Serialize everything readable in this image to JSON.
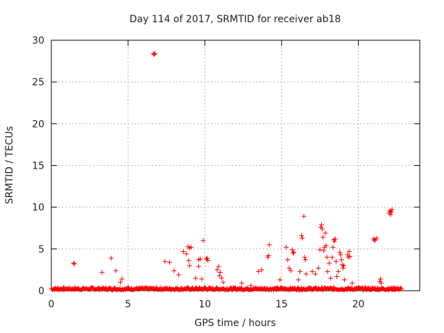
{
  "chart_data": {
    "type": "scatter",
    "title": "Day 114 of 2017, SRMTID for receiver ab18",
    "xlabel": "GPS time / hours",
    "ylabel": "SRMTID / TECUs",
    "xlim": [
      0,
      24
    ],
    "ylim": [
      0,
      30
    ],
    "xticks": [
      0,
      5,
      10,
      15,
      20
    ],
    "yticks": [
      0,
      5,
      10,
      15,
      20,
      25,
      30
    ],
    "grid": true,
    "marker": "+",
    "color": "#ff0000",
    "series": [
      {
        "name": "SRMTID",
        "points": [
          [
            1.45,
            3.3
          ],
          [
            1.5,
            3.2
          ],
          [
            3.3,
            2.2
          ],
          [
            3.9,
            3.9
          ],
          [
            4.2,
            2.4
          ],
          [
            4.6,
            1.4
          ],
          [
            4.5,
            1.0
          ],
          [
            6.65,
            28.4
          ],
          [
            6.7,
            28.3
          ],
          [
            6.75,
            28.4
          ],
          [
            7.4,
            3.5
          ],
          [
            7.7,
            3.4
          ],
          [
            8.0,
            2.4
          ],
          [
            8.3,
            1.9
          ],
          [
            8.6,
            4.7
          ],
          [
            8.8,
            4.4
          ],
          [
            8.9,
            5.3
          ],
          [
            9.0,
            5.1
          ],
          [
            9.1,
            5.2
          ],
          [
            8.95,
            3.6
          ],
          [
            9.0,
            3.0
          ],
          [
            9.4,
            1.5
          ],
          [
            9.6,
            2.9
          ],
          [
            9.8,
            1.4
          ],
          [
            9.6,
            3.7
          ],
          [
            9.7,
            3.8
          ],
          [
            9.9,
            6.0
          ],
          [
            10.1,
            3.8
          ],
          [
            10.2,
            3.6
          ],
          [
            10.15,
            3.9
          ],
          [
            10.8,
            2.5
          ],
          [
            10.9,
            2.9
          ],
          [
            11.0,
            2.2
          ],
          [
            11.1,
            1.5
          ],
          [
            10.95,
            1.8
          ],
          [
            11.2,
            1.0
          ],
          [
            12.4,
            0.9
          ],
          [
            13.0,
            0.6
          ],
          [
            13.5,
            2.3
          ],
          [
            13.7,
            2.5
          ],
          [
            14.2,
            5.5
          ],
          [
            14.15,
            4.2
          ],
          [
            14.1,
            4.0
          ],
          [
            14.9,
            1.3
          ],
          [
            15.3,
            5.2
          ],
          [
            15.4,
            3.7
          ],
          [
            15.5,
            2.7
          ],
          [
            15.6,
            2.4
          ],
          [
            15.7,
            4.9
          ],
          [
            15.8,
            4.6
          ],
          [
            15.75,
            4.5
          ],
          [
            16.1,
            1.3
          ],
          [
            16.2,
            2.3
          ],
          [
            16.3,
            6.6
          ],
          [
            16.35,
            6.3
          ],
          [
            16.45,
            8.9
          ],
          [
            16.5,
            4.0
          ],
          [
            16.55,
            3.7
          ],
          [
            16.6,
            2.0
          ],
          [
            17.0,
            2.3
          ],
          [
            17.2,
            2.0
          ],
          [
            17.4,
            2.7
          ],
          [
            17.5,
            4.9
          ],
          [
            17.55,
            7.6
          ],
          [
            17.6,
            7.9
          ],
          [
            17.65,
            7.4
          ],
          [
            17.7,
            6.4
          ],
          [
            17.75,
            4.8
          ],
          [
            17.8,
            5.2
          ],
          [
            17.85,
            6.9
          ],
          [
            17.9,
            5.4
          ],
          [
            17.95,
            4.0
          ],
          [
            18.0,
            2.3
          ],
          [
            18.1,
            3.3
          ],
          [
            18.2,
            1.5
          ],
          [
            18.3,
            4.0
          ],
          [
            18.35,
            5.2
          ],
          [
            18.4,
            6.1
          ],
          [
            18.45,
            5.9
          ],
          [
            18.5,
            6.2
          ],
          [
            18.55,
            3.5
          ],
          [
            18.6,
            1.7
          ],
          [
            18.7,
            2.3
          ],
          [
            18.8,
            4.6
          ],
          [
            18.85,
            4.3
          ],
          [
            18.9,
            3.7
          ],
          [
            18.95,
            3.1
          ],
          [
            19.0,
            2.7
          ],
          [
            19.05,
            3.0
          ],
          [
            19.1,
            1.3
          ],
          [
            19.3,
            4.3
          ],
          [
            19.35,
            4.0
          ],
          [
            19.4,
            4.7
          ],
          [
            19.45,
            4.1
          ],
          [
            19.6,
            0.9
          ],
          [
            21.0,
            6.2
          ],
          [
            21.05,
            6.0
          ],
          [
            21.1,
            6.1
          ],
          [
            21.2,
            6.3
          ],
          [
            21.4,
            1.1
          ],
          [
            21.45,
            1.4
          ],
          [
            21.5,
            0.9
          ],
          [
            22.0,
            9.3
          ],
          [
            22.05,
            9.5
          ],
          [
            22.1,
            9.6
          ],
          [
            22.15,
            9.4
          ],
          [
            22.2,
            9.7
          ],
          [
            22.1,
            9.1
          ],
          [
            22.4,
            0.3
          ],
          [
            22.8,
            0.2
          ]
        ]
      }
    ]
  }
}
